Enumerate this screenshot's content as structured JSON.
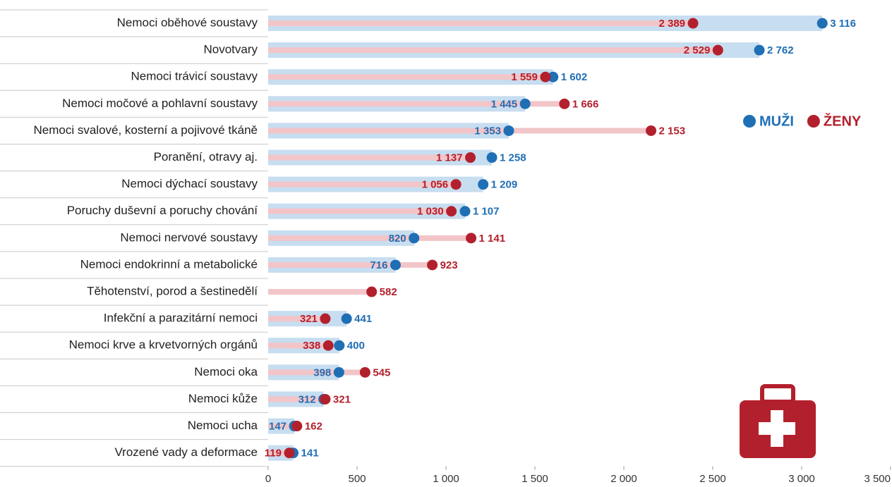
{
  "chart_data": {
    "type": "dumbbell",
    "categories": [
      "Nemoci oběhové soustavy",
      "Novotvary",
      "Nemoci trávicí soustavy",
      "Nemoci močové a pohlavní soustavy",
      "Nemoci svalové, kosterní a pojivové tkáně",
      "Poranění, otravy aj.",
      "Nemoci dýchací soustavy",
      "Poruchy duševní a poruchy chování",
      "Nemoci nervové soustavy",
      "Nemoci endokrinní a metabolické",
      "Těhotenství, porod a šestinedělí",
      "Infekční a parazitární nemoci",
      "Nemoci krve a krvetvorných orgánů",
      "Nemoci oka",
      "Nemoci kůže",
      "Nemoci ucha",
      "Vrozené vady a deformace"
    ],
    "series": [
      {
        "name": "MUŽI",
        "color": "#1f6fb5",
        "bar_color": "#c7ddf0",
        "values": [
          3116,
          2762,
          1602,
          1445,
          1353,
          1258,
          1209,
          1107,
          820,
          716,
          null,
          441,
          400,
          398,
          312,
          147,
          141
        ],
        "value_labels": [
          "3 116",
          "2 762",
          "1 602",
          "1 445",
          "1 353",
          "1 258",
          "1 209",
          "1 107",
          "820",
          "716",
          null,
          "441",
          "400",
          "398",
          "312",
          "147",
          "141"
        ]
      },
      {
        "name": "ŽENY",
        "color": "#b3202d",
        "bar_color": "#f2c5c9",
        "values": [
          2389,
          2529,
          1559,
          1666,
          2153,
          1137,
          1056,
          1030,
          1141,
          923,
          582,
          321,
          338,
          545,
          321,
          162,
          119
        ],
        "value_labels": [
          "2 389",
          "2 529",
          "1 559",
          "1 666",
          "2 153",
          "1 137",
          "1 056",
          "1 030",
          "1 141",
          "923",
          "582",
          "321",
          "338",
          "545",
          "321",
          "162",
          "119"
        ]
      }
    ],
    "xlim": [
      0,
      3500
    ],
    "xticks": [
      0,
      500,
      {
        "value": 1000,
        "label": "1 000"
      },
      {
        "value": 1500,
        "label": "1 500"
      },
      {
        "value": 2000,
        "label": "2 000"
      },
      {
        "value": 2500,
        "label": "2 500"
      },
      {
        "value": 3000,
        "label": "3 000"
      },
      {
        "value": 3500,
        "label": "3 500"
      }
    ],
    "legend": "top-right"
  }
}
